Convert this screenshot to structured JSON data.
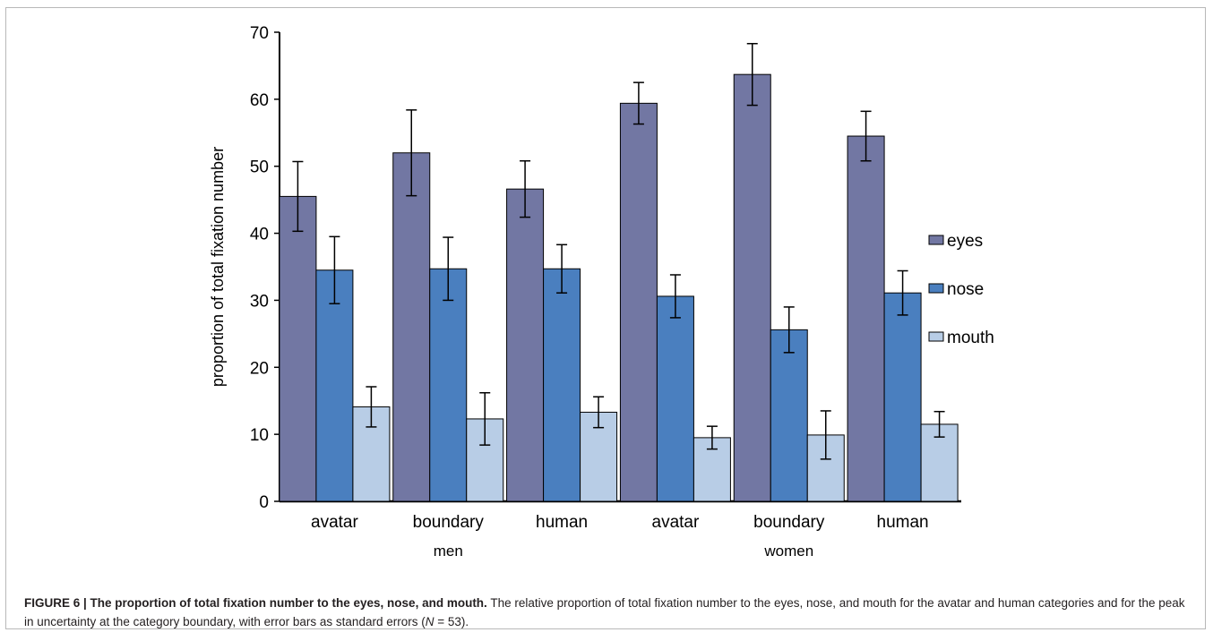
{
  "chart_data": {
    "type": "bar",
    "ylabel": "proportion of total fixation number",
    "xlabel": "",
    "ylim": [
      0,
      70
    ],
    "yticks": [
      0,
      10,
      20,
      30,
      40,
      50,
      60,
      70
    ],
    "categories": [
      "avatar",
      "boundary",
      "human",
      "avatar",
      "boundary",
      "human"
    ],
    "groups": [
      {
        "label": "men",
        "categories": [
          0,
          1,
          2
        ]
      },
      {
        "label": "women",
        "categories": [
          3,
          4,
          5
        ]
      }
    ],
    "series": [
      {
        "name": "eyes",
        "color": "#7277a3",
        "values": [
          45.5,
          52.0,
          46.6,
          59.4,
          63.7,
          54.5
        ],
        "errors": [
          5.2,
          6.4,
          4.2,
          3.1,
          4.6,
          3.7
        ]
      },
      {
        "name": "nose",
        "color": "#4a7fbf",
        "values": [
          34.5,
          34.7,
          34.7,
          30.6,
          25.6,
          31.1
        ],
        "errors": [
          5.0,
          4.7,
          3.6,
          3.2,
          3.4,
          3.3
        ]
      },
      {
        "name": "mouth",
        "color": "#b8cde6",
        "values": [
          14.1,
          12.3,
          13.3,
          9.5,
          9.9,
          11.5
        ],
        "errors": [
          3.0,
          3.9,
          2.3,
          1.7,
          3.6,
          1.9
        ]
      }
    ],
    "legend_position": "right",
    "grid": false
  },
  "caption": {
    "label": "FIGURE 6",
    "separator": " | ",
    "title": "The proportion of total fixation number to the eyes, nose, and mouth.",
    "text": " The relative proportion of total fixation number to the eyes, nose, and mouth for the avatar and human categories and for the peak in uncertainty at the category boundary, with error bars as standard errors (",
    "n_symbol": "N",
    "n_value": " = 53)."
  }
}
